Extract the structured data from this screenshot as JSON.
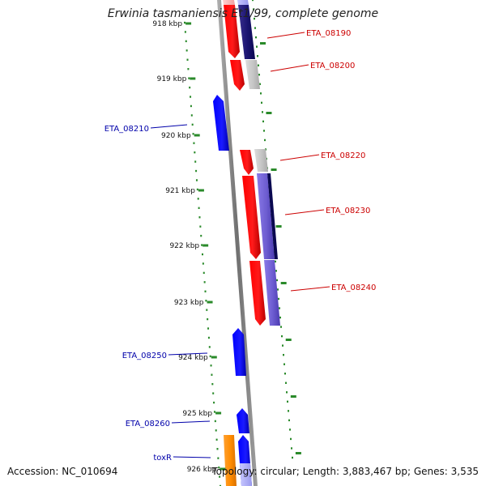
{
  "title": "Erwinia tasmaniensis Et1/99, complete genome",
  "footer": {
    "accession": "Accession: NC_010694",
    "topology": "Topology: circular; Length: 3,883,467 bp; Genes: 3,535"
  },
  "colors": {
    "backbone": "#8a8a8a",
    "ticks": "#2a8a2a",
    "forward_label": "#cc0000",
    "reverse_label": "#0000aa",
    "red_gene": "#ff0000",
    "blue_gene": "#0000ff",
    "purple_gene": "#7060d0",
    "navy_gene": "#1a1470",
    "gray_gene": "#c8c8c8",
    "orange_gene": "#ff8c00"
  },
  "ruler": {
    "start_kbp": 918,
    "end_kbp": 926,
    "labels": [
      "918 kbp",
      "919 kbp",
      "920 kbp",
      "921 kbp",
      "922 kbp",
      "923 kbp",
      "924 kbp",
      "925 kbp",
      "926 kbp"
    ]
  },
  "gene_labels": [
    {
      "name": "ETA_08190",
      "strand": "forward"
    },
    {
      "name": "ETA_08200",
      "strand": "forward"
    },
    {
      "name": "ETA_08210",
      "strand": "reverse"
    },
    {
      "name": "ETA_08220",
      "strand": "forward"
    },
    {
      "name": "ETA_08230",
      "strand": "forward"
    },
    {
      "name": "ETA_08240",
      "strand": "forward"
    },
    {
      "name": "ETA_08250",
      "strand": "reverse"
    },
    {
      "name": "ETA_08260",
      "strand": "reverse"
    },
    {
      "name": "toxR",
      "strand": "reverse"
    }
  ]
}
